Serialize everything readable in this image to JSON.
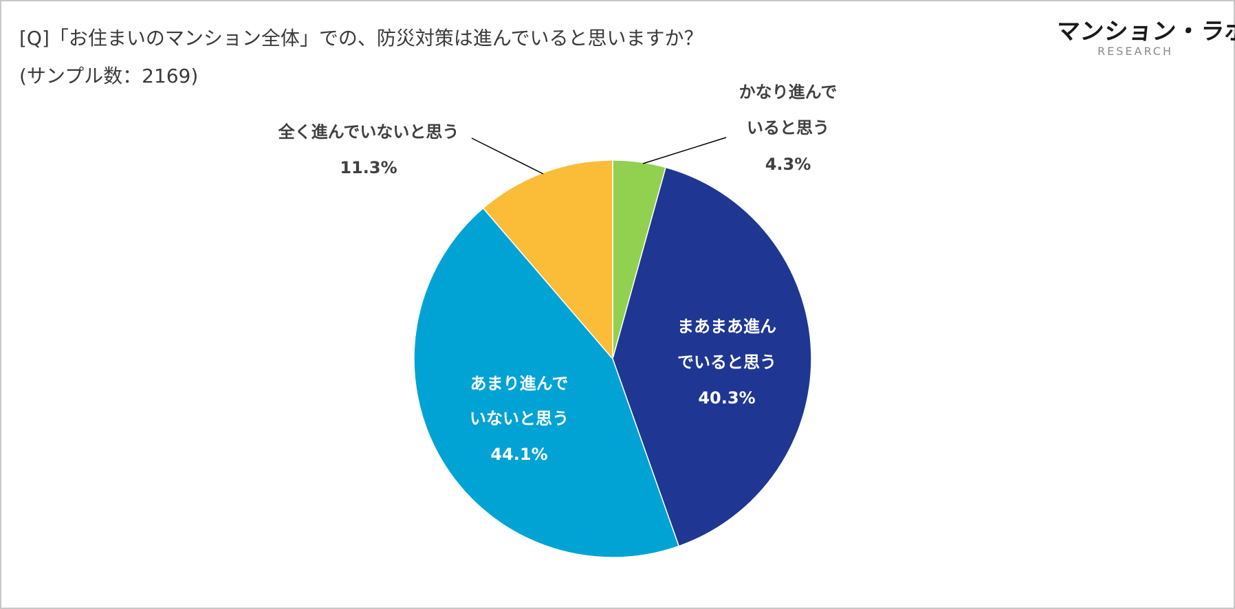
{
  "header": {
    "question": "[Q]「お住まいのマンション全体」での、防災対策は進んでいると思いますか？",
    "sample": "(サンプル数：2169)"
  },
  "logo": {
    "main": "マンション・ラボ",
    "sub": "RESEARCH"
  },
  "chart_data": {
    "type": "pie",
    "title": "[Q]「お住まいのマンション全体」での、防災対策は進んでいると思いますか？",
    "subtitle": "(サンプル数：2169)",
    "start_angle_deg": 0,
    "direction": "clockwise",
    "slices": [
      {
        "label": "かなり進んでいると思う",
        "value": 4.3,
        "display": "4.3%",
        "color": "#92d050",
        "label_lines": [
          "かなり進んで",
          "いると思う"
        ]
      },
      {
        "label": "まあまあ進んでいると思う",
        "value": 40.3,
        "display": "40.3%",
        "color": "#1f3792",
        "label_lines": [
          "まあまあ進ん",
          "でいると思う"
        ]
      },
      {
        "label": "あまり進んでいないと思う",
        "value": 44.1,
        "display": "44.1%",
        "color": "#00a3d4",
        "label_lines": [
          "あまり進んで",
          "いないと思う"
        ]
      },
      {
        "label": "全く進んでいないと思う",
        "value": 11.3,
        "display": "11.3%",
        "color": "#fbbc37",
        "label_lines": [
          "全く進んでいないと思う"
        ]
      }
    ],
    "legend": "none"
  }
}
